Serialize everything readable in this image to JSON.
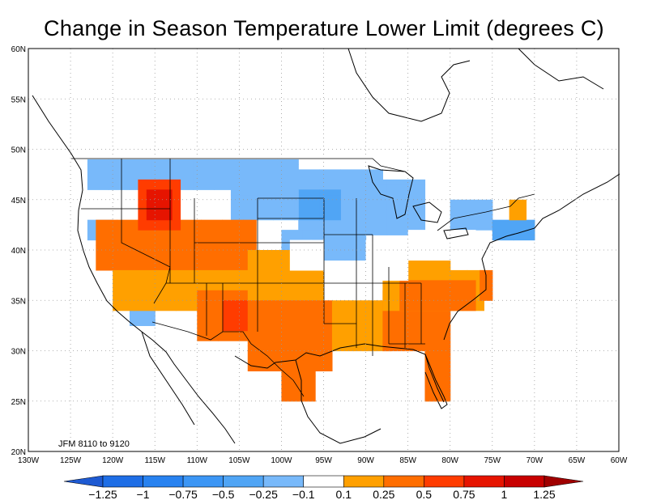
{
  "title": "Change in Season Temperature Lower Limit (degrees C)",
  "annotation": "JFM 8110  to 9120",
  "axes": {
    "x_ticks": [
      "130W",
      "125W",
      "120W",
      "115W",
      "110W",
      "105W",
      "100W",
      "95W",
      "90W",
      "85W",
      "80W",
      "75W",
      "70W",
      "65W",
      "60W"
    ],
    "y_ticks": [
      "20N",
      "25N",
      "30N",
      "35N",
      "40N",
      "45N",
      "50N",
      "55N",
      "60N"
    ],
    "lon_range": [
      -130,
      -60
    ],
    "lat_range": [
      20,
      60
    ],
    "grid": true
  },
  "colorbar": {
    "labels": [
      "-1.25",
      "-1",
      "-0.75",
      "-0.5",
      "-0.25",
      "-0.1",
      "0.1",
      "0.25",
      "0.5",
      "0.75",
      "1",
      "1.25"
    ],
    "colors": [
      "#1e6ee6",
      "#2882f0",
      "#3c96f5",
      "#50a5f5",
      "#78b9fa",
      "#ffffff",
      "#ffa000",
      "#ff6e00",
      "#ff3c00",
      "#e61400",
      "#c80000"
    ],
    "under_color": "#1e5ad2",
    "over_color": "#a00000"
  },
  "chart_data": {
    "type": "heatmap",
    "title": "Change in Season Temperature Lower Limit (degrees C)",
    "cell_size_deg": 2.5,
    "regions": [
      {
        "class": 4,
        "lon": [
          -123,
          -98
        ],
        "lat": [
          46,
          49
        ]
      },
      {
        "class": 4,
        "lon": [
          -98,
          -88
        ],
        "lat": [
          42,
          48
        ]
      },
      {
        "class": 3,
        "lon": [
          -98,
          -93
        ],
        "lat": [
          43,
          46
        ]
      },
      {
        "class": 4,
        "lon": [
          -90,
          -83
        ],
        "lat": [
          41.5,
          47
        ]
      },
      {
        "class": 4,
        "lon": [
          -106,
          -98
        ],
        "lat": [
          43,
          46
        ]
      },
      {
        "class": 4,
        "lon": [
          -100,
          -90
        ],
        "lat": [
          39,
          42
        ]
      },
      {
        "class": 4,
        "lon": [
          -80,
          -75
        ],
        "lat": [
          42,
          45
        ]
      },
      {
        "class": 3,
        "lon": [
          -75,
          -70
        ],
        "lat": [
          41,
          43
        ]
      },
      {
        "class": 4,
        "lon": [
          -123,
          -120
        ],
        "lat": [
          41,
          43
        ]
      },
      {
        "class": 4,
        "lon": [
          -118,
          -115
        ],
        "lat": [
          32.5,
          35
        ]
      },
      {
        "class": 7,
        "lon": [
          -122,
          -103
        ],
        "lat": [
          38,
          43
        ]
      },
      {
        "class": 8,
        "lon": [
          -117,
          -112
        ],
        "lat": [
          42,
          47
        ]
      },
      {
        "class": 9,
        "lon": [
          -116,
          -113
        ],
        "lat": [
          43,
          46
        ]
      },
      {
        "class": 6,
        "lon": [
          -120,
          -104
        ],
        "lat": [
          34,
          38
        ]
      },
      {
        "class": 7,
        "lon": [
          -110,
          -103
        ],
        "lat": [
          31,
          36
        ]
      },
      {
        "class": 8,
        "lon": [
          -107,
          -104
        ],
        "lat": [
          32,
          35
        ]
      },
      {
        "class": 6,
        "lon": [
          -104,
          -95
        ],
        "lat": [
          35,
          40
        ]
      },
      {
        "class": 7,
        "lon": [
          -104,
          -94
        ],
        "lat": [
          28,
          35
        ]
      },
      {
        "class": 7,
        "lon": [
          -100,
          -96
        ],
        "lat": [
          25,
          29
        ]
      },
      {
        "class": 6,
        "lon": [
          -94,
          -87
        ],
        "lat": [
          30,
          35
        ]
      },
      {
        "class": 7,
        "lon": [
          -88,
          -80
        ],
        "lat": [
          30,
          36
        ]
      },
      {
        "class": 7,
        "lon": [
          -83,
          -80
        ],
        "lat": [
          25,
          30
        ]
      },
      {
        "class": 6,
        "lon": [
          -88,
          -76
        ],
        "lat": [
          34,
          38
        ]
      },
      {
        "class": 7,
        "lon": [
          -86,
          -77
        ],
        "lat": [
          34,
          37
        ]
      },
      {
        "class": 7,
        "lon": [
          -76.5,
          -75
        ],
        "lat": [
          35,
          38
        ]
      },
      {
        "class": 6,
        "lon": [
          -85,
          -80
        ],
        "lat": [
          38,
          39
        ]
      },
      {
        "class": 6,
        "lon": [
          -73,
          -71
        ],
        "lat": [
          43,
          45
        ]
      },
      {
        "class": 5,
        "lon": [
          -99,
          -95
        ],
        "lat": [
          38,
          41
        ]
      },
      {
        "class": 5,
        "lon": [
          -90,
          -85
        ],
        "lat": [
          37,
          41
        ]
      },
      {
        "class": 5,
        "lon": [
          -85,
          -77
        ],
        "lat": [
          39,
          42
        ]
      }
    ]
  }
}
